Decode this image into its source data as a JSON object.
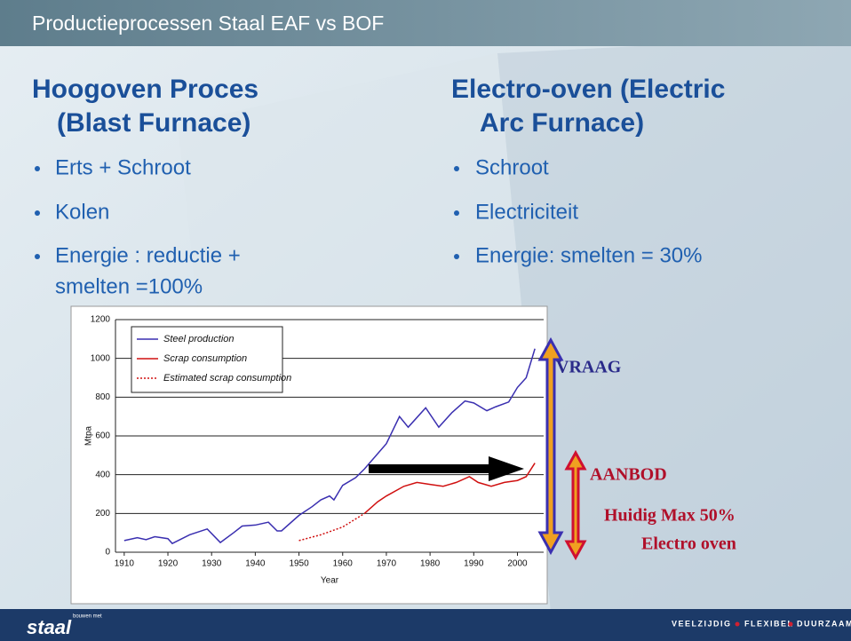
{
  "slide": {
    "title": "Productieprocessen Staal EAF vs BOF",
    "left": {
      "heading": [
        "Hoogoven Proces",
        "(Blast Furnace)"
      ],
      "bullets": [
        [
          "Erts + Schroot"
        ],
        [
          "Kolen"
        ],
        [
          "Energie : reductie +",
          "smelten =100%"
        ]
      ]
    },
    "right": {
      "heading": [
        "Electro-oven  (Electric",
        "Arc Furnace)"
      ],
      "bullets": [
        [
          "Schroot"
        ],
        [
          "Electriciteit"
        ],
        [
          "Energie: smelten = 30%"
        ]
      ]
    },
    "annotations": {
      "demand": "VRAAG",
      "supply": "AANBOD",
      "max": "Huidig Max 50%",
      "eaf": "Electro oven"
    },
    "footer": {
      "logo": "staal",
      "logo_small": "bouwen met",
      "tagline": [
        "VEELZIJDIG",
        "FLEXIBEL",
        "DUURZAAM"
      ]
    }
  },
  "chart_data": {
    "type": "line",
    "x_label": "Year",
    "y_label": "Mtpa",
    "xlim": [
      1908,
      2006
    ],
    "ylim": [
      0,
      1200
    ],
    "xticks": [
      1910,
      1920,
      1930,
      1940,
      1950,
      1960,
      1970,
      1980,
      1990,
      2000
    ],
    "yticks": [
      0,
      200,
      400,
      600,
      800,
      1000,
      1200
    ],
    "grid": true,
    "legend": "top-left",
    "series": [
      {
        "name": "Steel production",
        "color": "#3a2fb0",
        "style": "solid",
        "x": [
          1910,
          1913,
          1915,
          1917,
          1920,
          1921,
          1925,
          1929,
          1932,
          1935,
          1937,
          1940,
          1943,
          1945,
          1946,
          1950,
          1953,
          1955,
          1957,
          1958,
          1960,
          1963,
          1965,
          1970,
          1973,
          1975,
          1979,
          1982,
          1985,
          1988,
          1990,
          1993,
          1995,
          1998,
          2000,
          2002,
          2004
        ],
        "values": [
          60,
          75,
          65,
          80,
          70,
          45,
          90,
          120,
          50,
          100,
          135,
          140,
          155,
          110,
          110,
          190,
          235,
          270,
          290,
          270,
          345,
          385,
          430,
          560,
          700,
          645,
          745,
          645,
          720,
          780,
          770,
          730,
          750,
          775,
          850,
          900,
          1050
        ]
      },
      {
        "name": "Scrap consumption",
        "color": "#d01010",
        "style": "solid",
        "x": [
          1965,
          1968,
          1970,
          1974,
          1977,
          1980,
          1983,
          1986,
          1989,
          1991,
          1994,
          1997,
          2000,
          2002,
          2004
        ],
        "values": [
          200,
          260,
          290,
          340,
          360,
          350,
          340,
          360,
          390,
          360,
          340,
          360,
          370,
          390,
          460
        ]
      },
      {
        "name": "Estimated scrap consumption",
        "color": "#d01010",
        "style": "dashed",
        "x": [
          1950,
          1955,
          1960,
          1965
        ],
        "values": [
          60,
          90,
          130,
          200
        ]
      }
    ]
  }
}
